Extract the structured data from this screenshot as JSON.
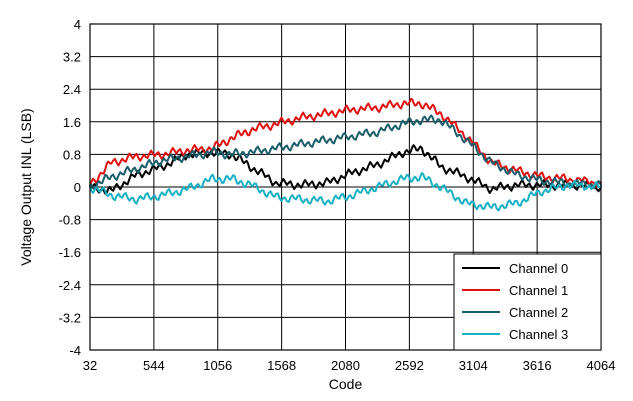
{
  "chart_data": {
    "type": "line",
    "title": "",
    "xlabel": "Code",
    "ylabel": "Voltage Output INL (LSB)",
    "xlim": [
      32,
      4064
    ],
    "ylim": [
      -4,
      4
    ],
    "x_ticks": [
      "32",
      "544",
      "1056",
      "1568",
      "2080",
      "2592",
      "3104",
      "3616",
      "4064"
    ],
    "y_ticks": [
      "4",
      "3.2",
      "2.4",
      "1.6",
      "0.8",
      "0",
      "-0.8",
      "-1.6",
      "-2.4",
      "-3.2",
      "-4"
    ],
    "grid": true,
    "legend_position": "bottom-right",
    "x": [
      32,
      200,
      400,
      600,
      800,
      1000,
      1150,
      1300,
      1500,
      1700,
      1900,
      2100,
      2300,
      2500,
      2650,
      2800,
      3000,
      3200,
      3400,
      3600,
      3800,
      4064
    ],
    "series": [
      {
        "name": "Channel 0",
        "color": "#000000",
        "values": [
          0.0,
          -0.1,
          0.3,
          0.5,
          0.8,
          0.85,
          0.8,
          0.5,
          0.1,
          0.05,
          0.1,
          0.35,
          0.55,
          0.85,
          0.95,
          0.5,
          0.25,
          -0.05,
          0.05,
          0.05,
          0.05,
          0.0
        ]
      },
      {
        "name": "Channel 1",
        "color": "#e01010",
        "values": [
          0.05,
          0.6,
          0.75,
          0.8,
          0.9,
          0.95,
          1.2,
          1.4,
          1.55,
          1.7,
          1.8,
          1.9,
          1.95,
          2.05,
          2.05,
          1.8,
          1.25,
          0.6,
          0.4,
          0.25,
          0.2,
          0.1
        ]
      },
      {
        "name": "Channel 2",
        "color": "#1a5e6a",
        "values": [
          0.0,
          0.25,
          0.45,
          0.65,
          0.75,
          0.85,
          0.8,
          0.85,
          0.95,
          1.05,
          1.15,
          1.25,
          1.35,
          1.55,
          1.65,
          1.65,
          1.15,
          0.6,
          0.3,
          0.15,
          0.1,
          0.05
        ]
      },
      {
        "name": "Channel 3",
        "color": "#1ab0c4",
        "values": [
          0.0,
          -0.2,
          -0.3,
          -0.2,
          -0.05,
          0.2,
          0.2,
          0.05,
          -0.25,
          -0.3,
          -0.35,
          -0.2,
          0.0,
          0.2,
          0.25,
          0.0,
          -0.4,
          -0.5,
          -0.4,
          -0.1,
          0.05,
          0.0
        ]
      }
    ]
  }
}
